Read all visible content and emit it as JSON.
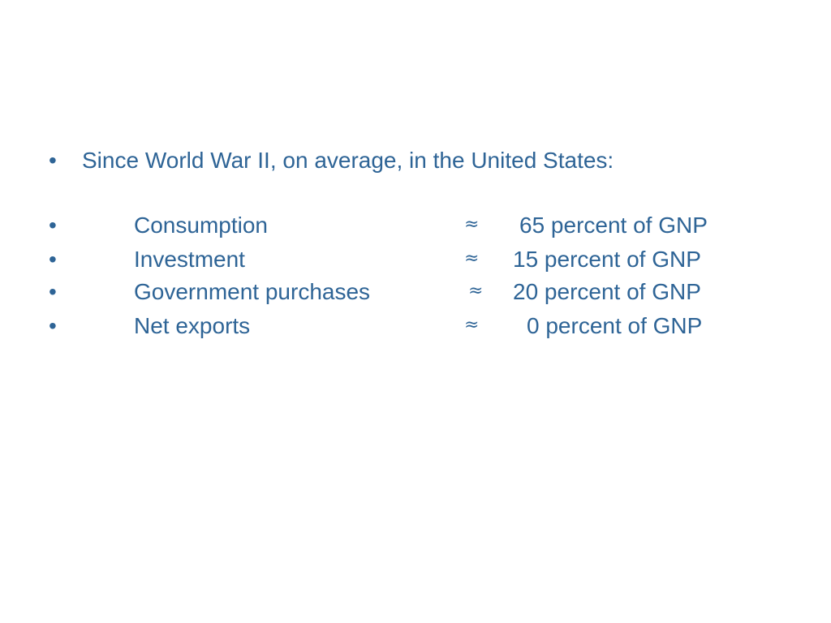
{
  "slide": {
    "intro": {
      "bullet": "•",
      "text": "Since World War II, on average, in the United States:"
    },
    "items": [
      {
        "bullet": "•",
        "label": "Consumption",
        "approx": "≈",
        "value": "65 percent of GNP"
      },
      {
        "bullet": "•",
        "label": "Investment",
        "approx": "≈",
        "value": "15 percent of GNP"
      },
      {
        "bullet": "•",
        "label": "Government purchases",
        "approx": "≈",
        "value": "20 percent of GNP"
      },
      {
        "bullet": "•",
        "label": "Net exports",
        "approx": "≈",
        "value": "0 percent of GNP"
      }
    ]
  },
  "colors": {
    "text": "#2e6496",
    "background": "#ffffff"
  }
}
